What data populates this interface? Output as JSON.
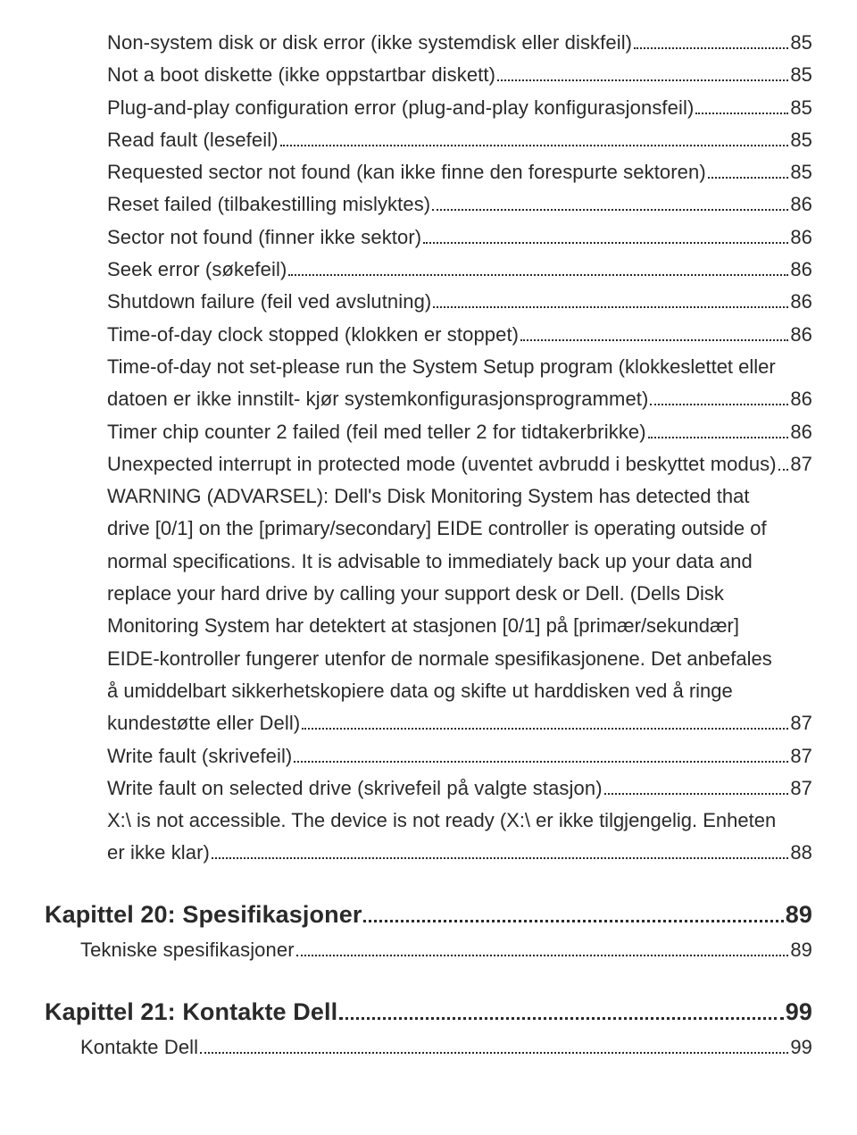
{
  "entries": [
    {
      "type": "item",
      "indent": 1,
      "text": "Non-system disk or disk error (ikke systemdisk eller diskfeil)",
      "page": "85"
    },
    {
      "type": "item",
      "indent": 1,
      "text": "Not a boot diskette (ikke oppstartbar diskett)",
      "page": "85"
    },
    {
      "type": "item",
      "indent": 1,
      "text": "Plug-and-play configuration error (plug-and-play konfigurasjonsfeil)",
      "page": "85"
    },
    {
      "type": "item",
      "indent": 1,
      "text": "Read fault (lesefeil)",
      "page": "85"
    },
    {
      "type": "item",
      "indent": 1,
      "text": "Requested sector not found (kan ikke finne den forespurte sektoren)",
      "page": "85"
    },
    {
      "type": "item",
      "indent": 1,
      "text": "Reset failed (tilbakestilling mislyktes)",
      "page": "86"
    },
    {
      "type": "item",
      "indent": 1,
      "text": "Sector not found (finner ikke sektor)",
      "page": "86"
    },
    {
      "type": "item",
      "indent": 1,
      "text": "Seek error (søkefeil)",
      "page": "86"
    },
    {
      "type": "item",
      "indent": 1,
      "text": "Shutdown failure (feil ved avslutning)",
      "page": "86"
    },
    {
      "type": "item",
      "indent": 1,
      "text": "Time-of-day clock stopped (klokken er stoppet)",
      "page": "86"
    },
    {
      "type": "multi",
      "indent": 1,
      "lines": [
        "Time-of-day not set-please run the System Setup program (klokkeslettet eller"
      ],
      "last": "datoen er ikke innstilt- kjør systemkonfigurasjonsprogrammet)",
      "page": "86"
    },
    {
      "type": "item",
      "indent": 1,
      "text": "Timer chip counter 2 failed (feil med teller 2 for tidtakerbrikke)",
      "page": "86"
    },
    {
      "type": "item",
      "indent": 1,
      "text": "Unexpected interrupt in protected mode (uventet avbrudd i beskyttet modus)",
      "page": "87"
    },
    {
      "type": "multi",
      "indent": 1,
      "lines": [
        "WARNING (ADVARSEL): Dell's Disk Monitoring System has detected that",
        "drive [0/1] on the [primary/secondary] EIDE controller is operating outside of",
        "normal specifications. It is advisable to immediately back up your data and",
        "replace your hard drive by calling your support desk or Dell. (Dells Disk",
        "Monitoring System har detektert at stasjonen [0/1] på [primær/sekundær]",
        "EIDE-kontroller fungerer utenfor de normale spesifikasjonene. Det anbefales",
        "å umiddelbart sikkerhetskopiere data og skifte ut harddisken ved å ringe"
      ],
      "last": "kundestøtte eller Dell)",
      "page": "87"
    },
    {
      "type": "item",
      "indent": 1,
      "text": "Write fault (skrivefeil)",
      "page": "87"
    },
    {
      "type": "item",
      "indent": 1,
      "text": "Write fault on selected drive (skrivefeil på valgte stasjon)",
      "page": "87"
    },
    {
      "type": "multi",
      "indent": 1,
      "lines": [
        "X:\\ is not accessible. The device is not ready (X:\\ er ikke tilgjengelig. Enheten"
      ],
      "last": "er ikke klar)",
      "page": "88"
    },
    {
      "type": "chapter",
      "indent": 0,
      "text": "Kapittel 20: Spesifikasjoner",
      "page": "89"
    },
    {
      "type": "item",
      "indent": 0.5,
      "text": "Tekniske spesifikasjoner",
      "page": "89"
    },
    {
      "type": "chapter",
      "indent": 0,
      "text": "Kapittel 21: Kontakte Dell",
      "page": "99"
    },
    {
      "type": "item",
      "indent": 0.5,
      "text": "Kontakte Dell",
      "page": "99"
    }
  ]
}
